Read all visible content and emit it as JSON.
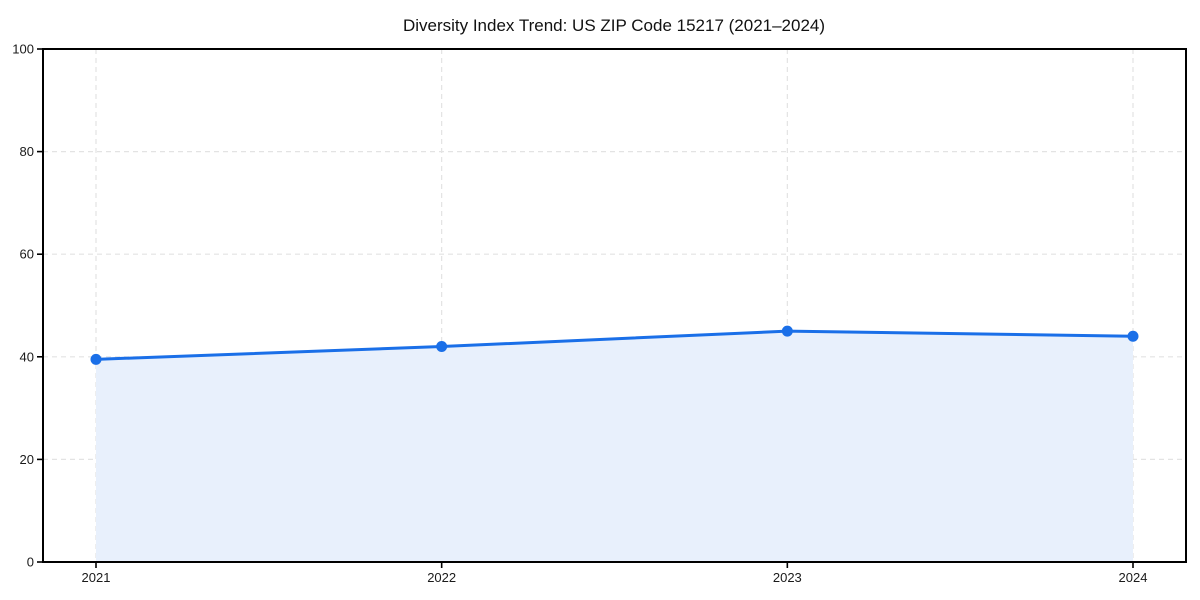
{
  "chart_data": {
    "type": "line",
    "title": "Diversity Index Trend: US ZIP Code 15217 (2021–2024)",
    "x": [
      "2021",
      "2022",
      "2023",
      "2024"
    ],
    "series": [
      {
        "name": "Diversity Index",
        "values": [
          39.5,
          42,
          45,
          44
        ]
      }
    ],
    "xlabel": "",
    "ylabel": "",
    "ylim": [
      0,
      100
    ],
    "yticks": [
      0,
      20,
      40,
      60,
      80,
      100
    ],
    "grid": true,
    "grid_style": "dashed",
    "legend_position": "none",
    "area": true,
    "colors": {
      "line": "#1a6fe8",
      "marker": "#1a6fe8",
      "area_fill": "#e8f0fc",
      "grid": "#e3e3e3",
      "axis": "#000000",
      "tick_label": "#1a1a1a",
      "title": "#111111"
    }
  }
}
